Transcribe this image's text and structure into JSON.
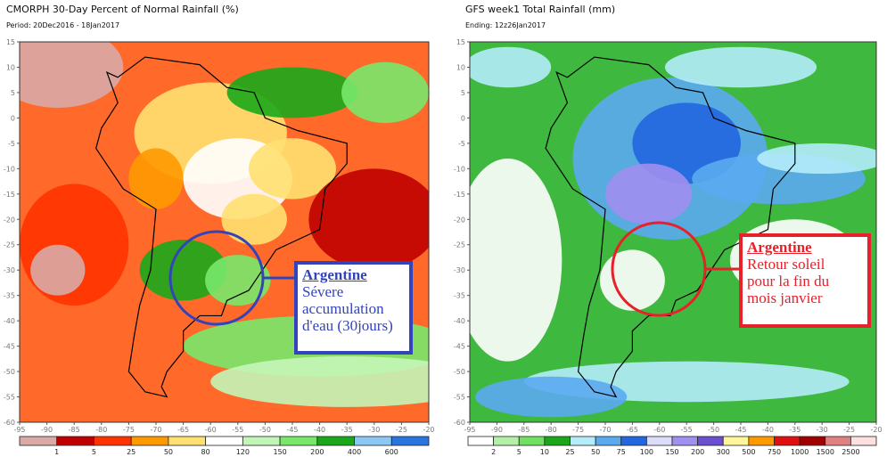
{
  "left": {
    "title": "CMORPH 30-Day Percent of Normal Rainfall (%)",
    "subtitle": "Period: 20Dec2016 - 18Jan2017",
    "lat_ticks": [
      "15",
      "10",
      "5",
      "0",
      "-5",
      "-10",
      "-15",
      "-20",
      "-25",
      "-30",
      "-35",
      "-40",
      "-45",
      "-50",
      "-55",
      "-60"
    ],
    "lon_ticks": [
      "-95",
      "-90",
      "-85",
      "-80",
      "-75",
      "-70",
      "-65",
      "-60",
      "-55",
      "-50",
      "-45",
      "-40",
      "-35",
      "-30",
      "-25",
      "-20"
    ],
    "colorbar": {
      "colors": [
        "#d9aaa6",
        "#c00000",
        "#ff3300",
        "#ff9900",
        "#ffe070",
        "#ffffff",
        "#c4f5b8",
        "#78e86a",
        "#1aa81a",
        "#8cc8f5",
        "#2a74e0"
      ],
      "labels": [
        "1",
        "5",
        "25",
        "50",
        "80",
        "120",
        "150",
        "200",
        "400",
        "600"
      ]
    },
    "annotation": {
      "heading": "Argentine",
      "lines": [
        "Sévere",
        "accumulation",
        "d'eau (30jours)"
      ],
      "color": "#3344bb"
    }
  },
  "right": {
    "title": "GFS week1 Total Rainfall (mm)",
    "subtitle": "Ending: 12z26Jan2017",
    "lat_ticks": [
      "15",
      "10",
      "5",
      "0",
      "-5",
      "-10",
      "-15",
      "-20",
      "-25",
      "-30",
      "-35",
      "-40",
      "-45",
      "-50",
      "-55",
      "-60"
    ],
    "lon_ticks": [
      "-95",
      "-90",
      "-85",
      "-80",
      "-75",
      "-70",
      "-65",
      "-60",
      "-55",
      "-50",
      "-45",
      "-40",
      "-35",
      "-30",
      "-25",
      "-20"
    ],
    "colorbar": {
      "colors": [
        "#ffffff",
        "#b4f0a8",
        "#70e060",
        "#1aa81a",
        "#b4ecfa",
        "#5aaaf0",
        "#2266e0",
        "#dcdcf8",
        "#a08ef0",
        "#6a50d0",
        "#fff59a",
        "#ff9900",
        "#e01010",
        "#a00000",
        "#e08080",
        "#fde0e0"
      ],
      "labels": [
        "2",
        "5",
        "10",
        "25",
        "50",
        "75",
        "100",
        "150",
        "200",
        "300",
        "500",
        "750",
        "1000",
        "1500",
        "2500"
      ]
    },
    "annotation": {
      "heading": "Argentine",
      "lines": [
        "Retour soleil",
        "pour la fin du",
        "mois janvier"
      ],
      "color": "#e8202a"
    }
  }
}
